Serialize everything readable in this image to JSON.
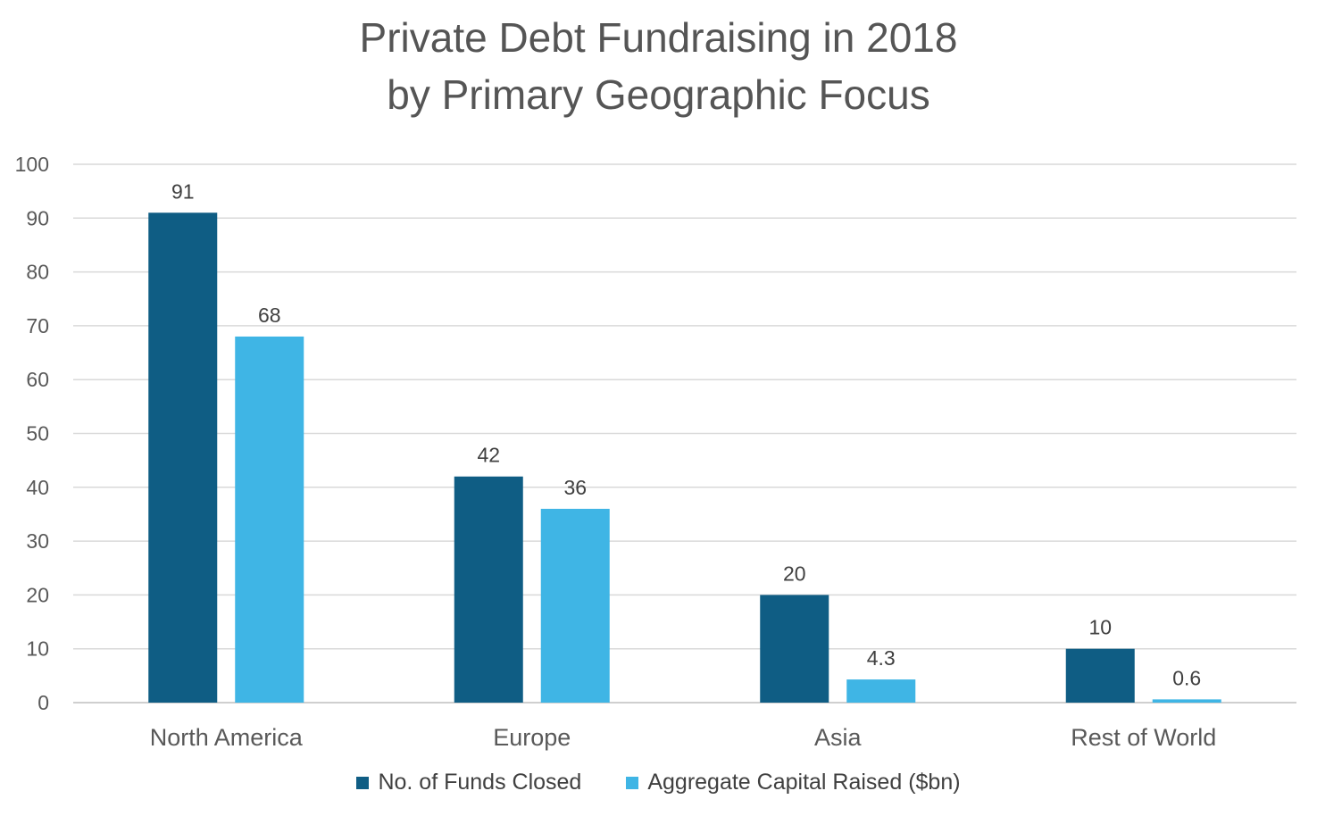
{
  "chart_data": {
    "type": "bar",
    "title": "Private Debt Fundraising in 2018",
    "subtitle": "by Primary Geographic Focus",
    "categories": [
      "North America",
      "Europe",
      "Asia",
      "Rest of World"
    ],
    "series": [
      {
        "name": "No. of Funds Closed",
        "color": "#0F5D84",
        "values": [
          91,
          42,
          20,
          10
        ],
        "labels": [
          "91",
          "42",
          "20",
          "10"
        ]
      },
      {
        "name": "Aggregate Capital Raised ($bn)",
        "color": "#3FB5E5",
        "values": [
          68,
          36,
          4.3,
          0.6
        ],
        "labels": [
          "68",
          "36",
          "4.3",
          "0.6"
        ]
      }
    ],
    "ylim": [
      0,
      100
    ],
    "yticks": [
      0,
      10,
      20,
      30,
      40,
      50,
      60,
      70,
      80,
      90,
      100
    ],
    "ytick_labels": [
      "0",
      "10",
      "20",
      "30",
      "40",
      "50",
      "60",
      "70",
      "80",
      "90",
      "100"
    ],
    "grid": true,
    "legend_position": "bottom-center"
  }
}
